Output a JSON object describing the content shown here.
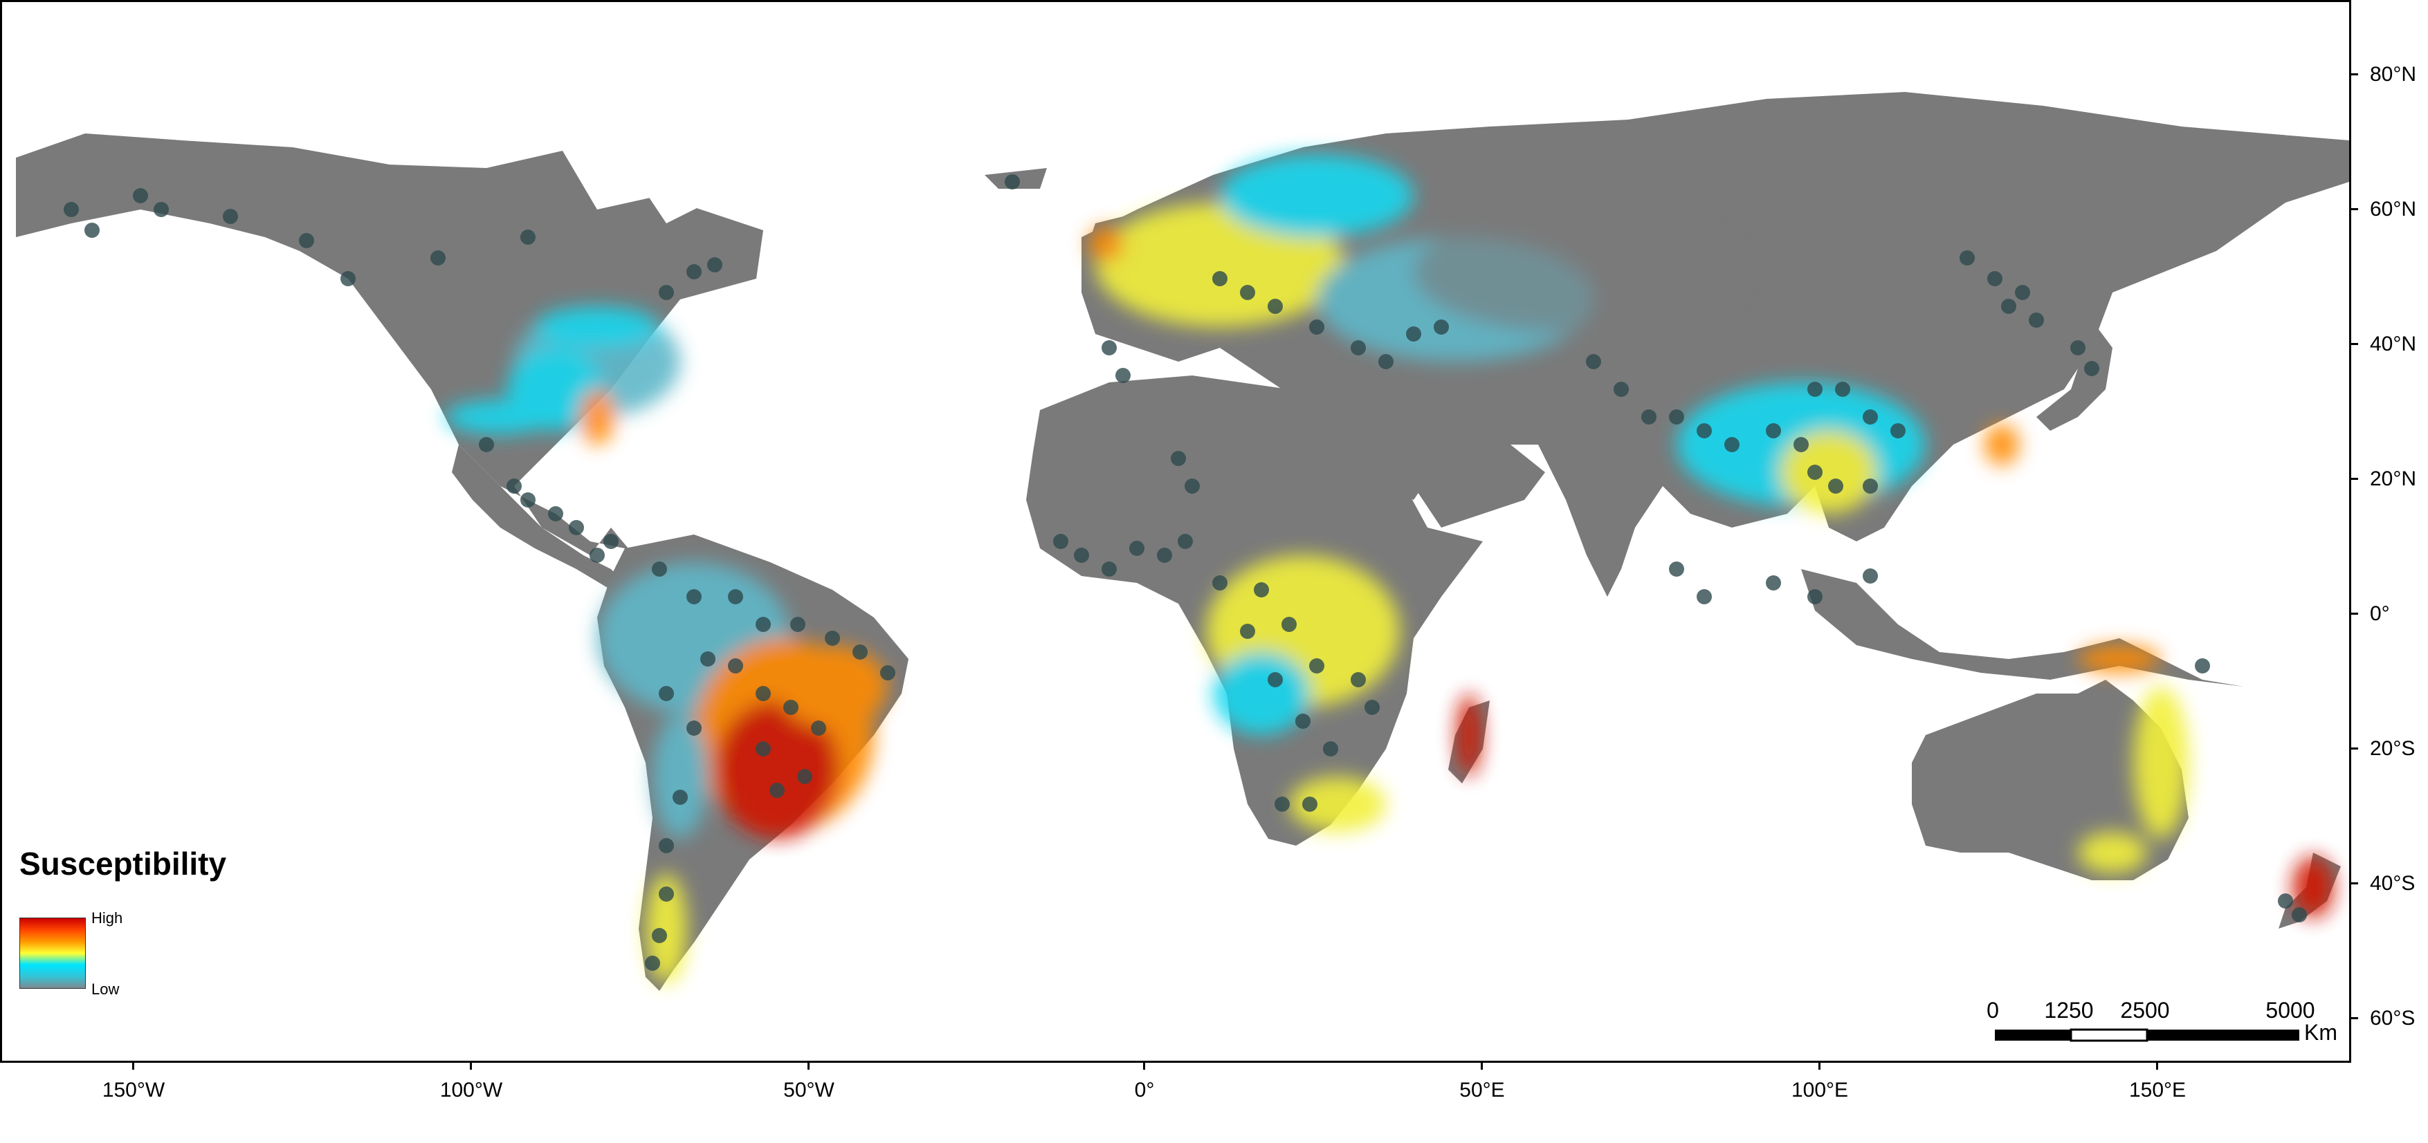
{
  "map": {
    "legend": {
      "title": "Susceptibility",
      "high_label": "High",
      "low_label": "Low",
      "gradient_colors": [
        "#cc0000",
        "#ff4400",
        "#ff9900",
        "#ffff33",
        "#00e5ff",
        "#33c4d6",
        "#7d8a91"
      ]
    },
    "colors": {
      "land_low": "#7a7a7a",
      "land_low_moderate": "#5fb7c9",
      "cyan": "#12d8f0",
      "yellow": "#f2f03a",
      "orange": "#ff8a00",
      "red": "#d01800",
      "point": "#2e4a4e",
      "water": "#ffffff"
    },
    "longitude_ticks": [
      "150°W",
      "100°W",
      "50°W",
      "0°",
      "50°E",
      "100°E",
      "150°E"
    ],
    "latitude_ticks": [
      "80°N",
      "60°N",
      "40°N",
      "20°N",
      "0°",
      "20°S",
      "40°S",
      "60°S"
    ],
    "scale_bar": {
      "labels": [
        "0",
        "1250",
        "2500",
        "5000"
      ],
      "unit": "Km"
    }
  }
}
